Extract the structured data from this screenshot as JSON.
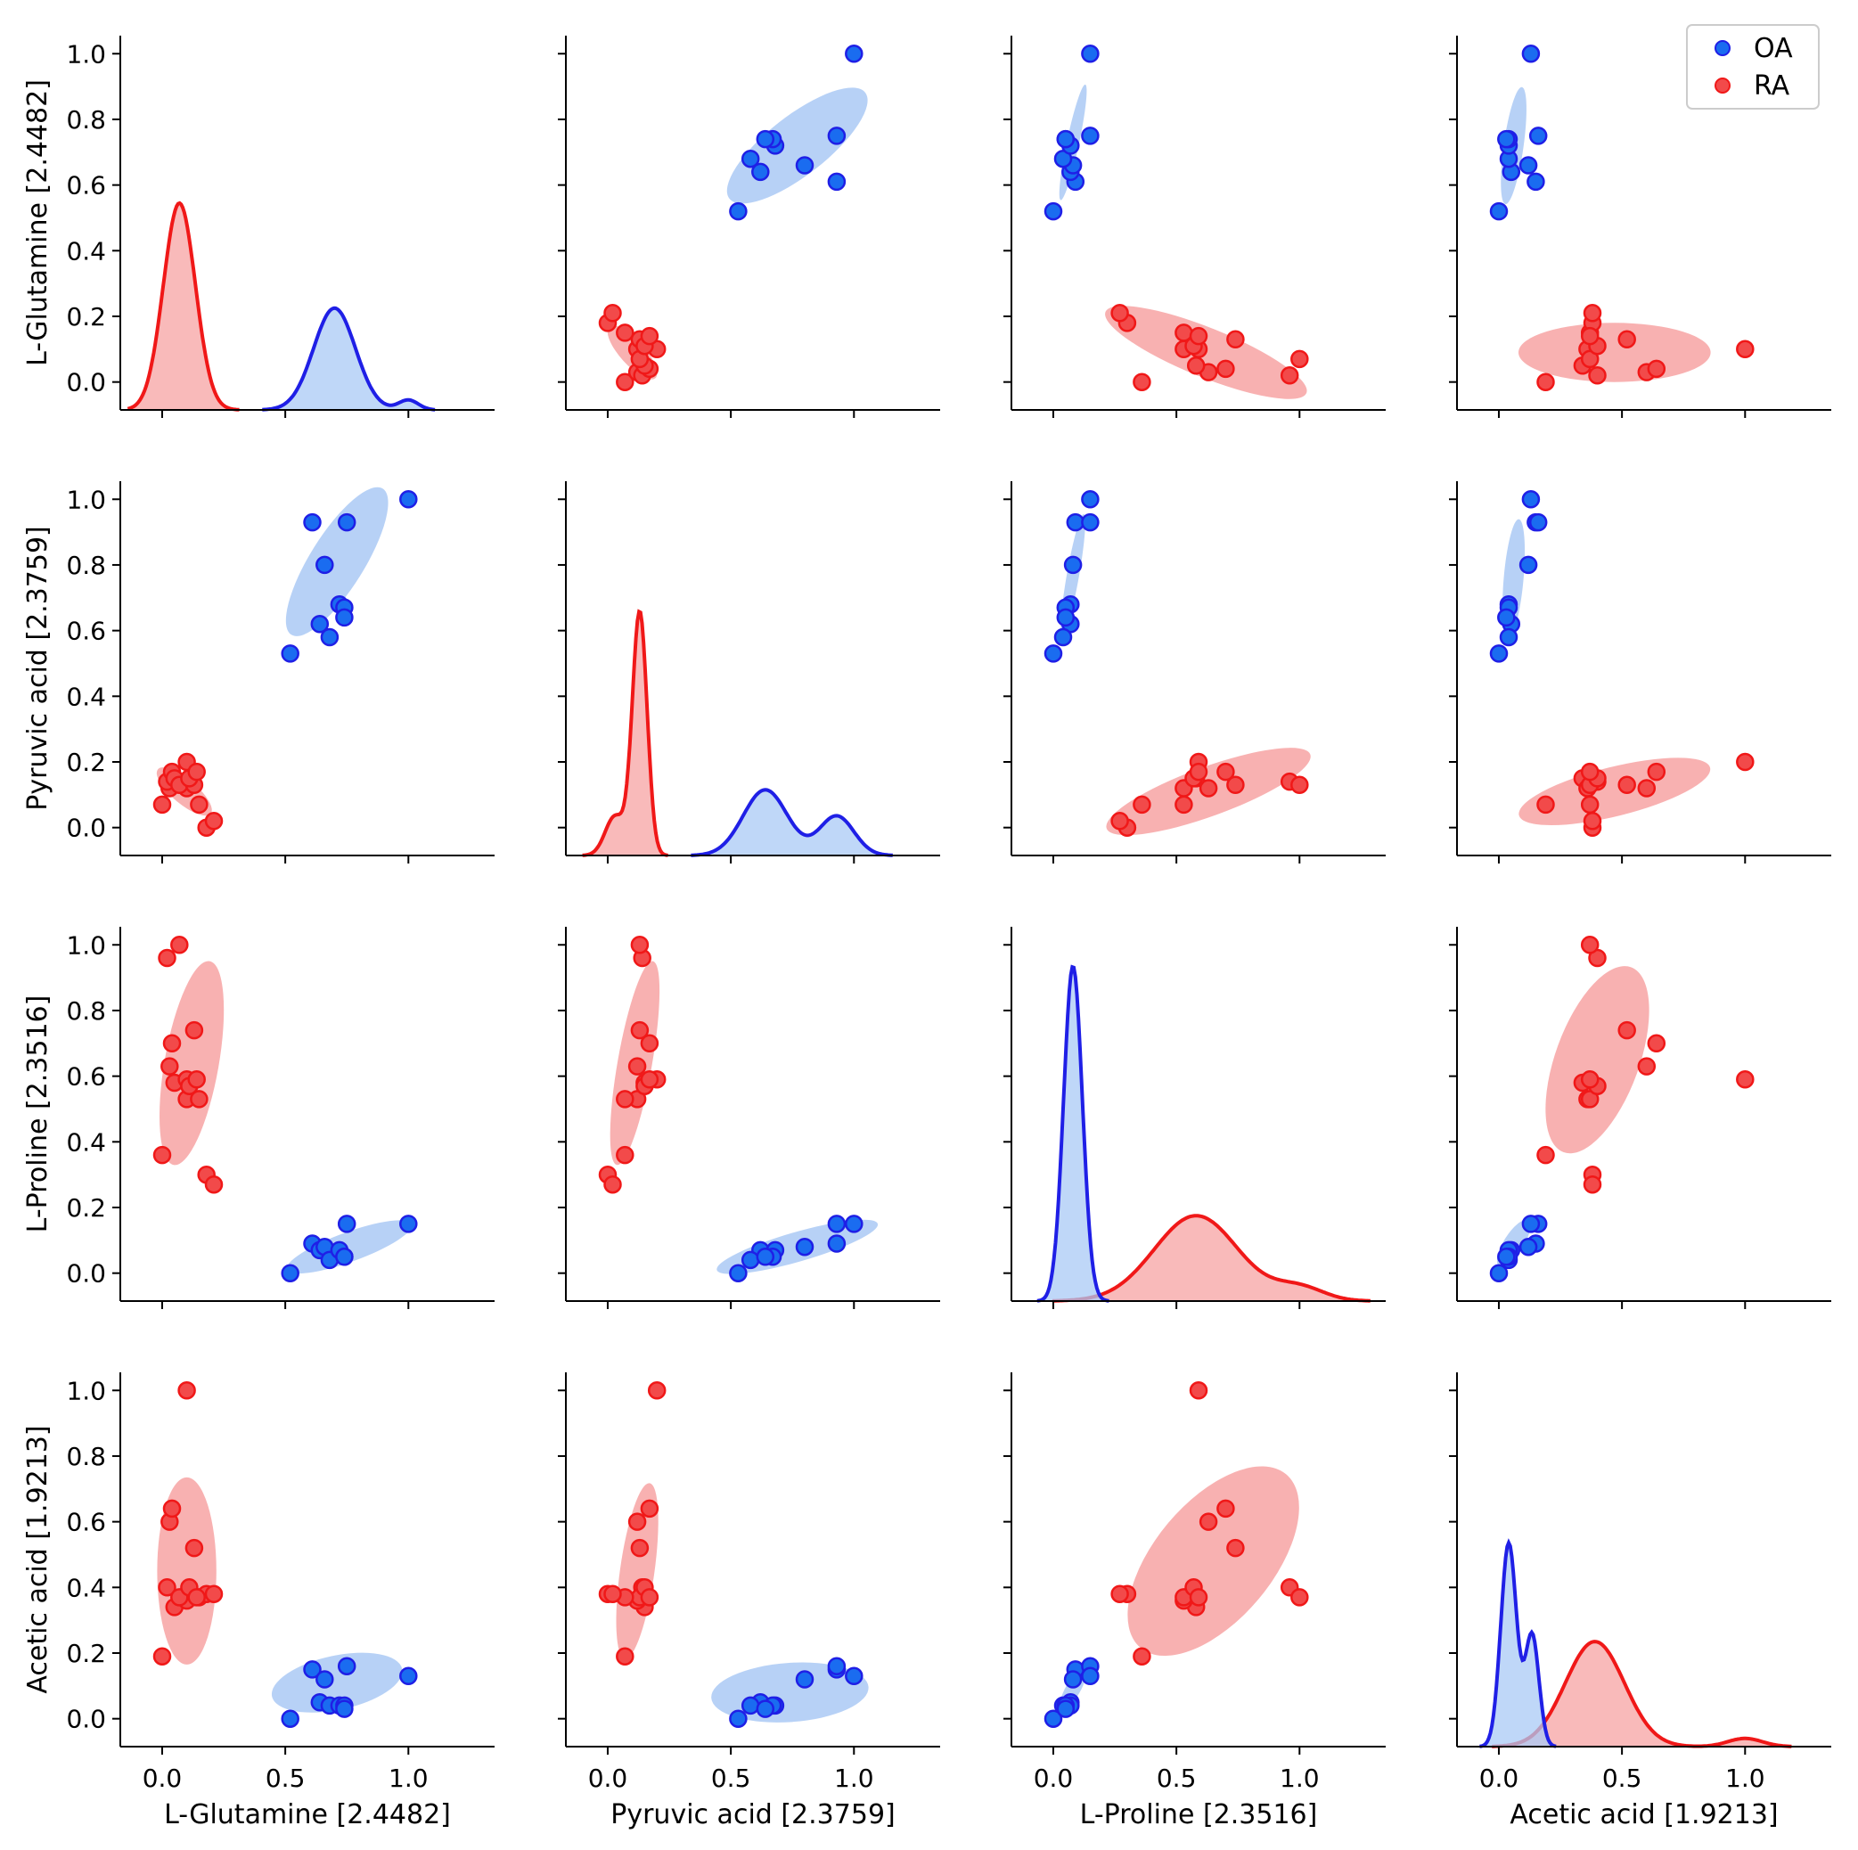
{
  "chart_data": {
    "type": "pairplot",
    "variables": [
      "L-Glutamine [2.4482]",
      "Pyruvic acid [2.3759]",
      "L-Proline [2.3516]",
      "Acetic acid [1.9213]"
    ],
    "xlim": [
      -0.17,
      1.35
    ],
    "ylim": [
      -0.085,
      1.055
    ],
    "xticks": [
      0.0,
      0.5,
      1.0
    ],
    "yticks": [
      0.0,
      0.2,
      0.4,
      0.6,
      0.8,
      1.0
    ],
    "colors": {
      "OA": "#1f1fe6",
      "OA_fill": "#aac9f5",
      "RA": "#f01818",
      "RA_fill": "#f7a3a3",
      "OA_point": "#1a6cf0",
      "RA_point": "#f24a4a"
    },
    "legend": {
      "position": "top-right",
      "entries": [
        "OA",
        "RA"
      ]
    },
    "groups": {
      "OA": {
        "L-Glutamine [2.4482]": [
          0.52,
          0.61,
          0.64,
          0.66,
          0.68,
          0.72,
          0.74,
          0.74,
          0.75,
          1.0
        ],
        "Pyruvic acid [2.3759]": [
          0.53,
          0.93,
          0.62,
          0.8,
          0.58,
          0.68,
          0.67,
          0.64,
          0.93,
          1.0
        ],
        "L-Proline [2.3516]": [
          0.0,
          0.09,
          0.07,
          0.08,
          0.04,
          0.07,
          0.05,
          0.05,
          0.15,
          0.15
        ],
        "Acetic acid [1.9213]": [
          0.0,
          0.15,
          0.05,
          0.12,
          0.04,
          0.04,
          0.04,
          0.03,
          0.16,
          0.13
        ]
      },
      "RA": {
        "L-Glutamine [2.4482]": [
          0.0,
          0.03,
          0.02,
          0.04,
          0.05,
          0.1,
          0.07,
          0.13,
          0.15,
          0.18,
          0.1,
          0.11,
          0.14,
          0.21
        ],
        "Pyruvic acid [2.3759]": [
          0.07,
          0.12,
          0.14,
          0.17,
          0.15,
          0.12,
          0.13,
          0.13,
          0.07,
          0.0,
          0.2,
          0.15,
          0.17,
          0.02
        ],
        "L-Proline [2.3516]": [
          0.36,
          0.63,
          0.96,
          0.7,
          0.58,
          0.53,
          1.0,
          0.74,
          0.53,
          0.3,
          0.59,
          0.57,
          0.59,
          0.27
        ],
        "Acetic acid [1.9213]": [
          0.19,
          0.6,
          0.4,
          0.64,
          0.34,
          0.36,
          0.37,
          0.52,
          0.37,
          0.38,
          1.0,
          0.4,
          0.37,
          0.38
        ]
      }
    },
    "ellipses": [
      {
        "row": 0,
        "col": 1,
        "group": "OA",
        "cx": 0.77,
        "cy": 0.72,
        "rx": 0.35,
        "ry": 0.12,
        "angle": 38
      },
      {
        "row": 0,
        "col": 1,
        "group": "RA",
        "cx": 0.1,
        "cy": 0.09,
        "rx": 0.14,
        "ry": 0.05,
        "angle": -48
      },
      {
        "row": 0,
        "col": 2,
        "group": "OA",
        "cx": 0.08,
        "cy": 0.73,
        "rx": 0.24,
        "ry": 0.025,
        "angle": 78
      },
      {
        "row": 0,
        "col": 2,
        "group": "RA",
        "cx": 0.62,
        "cy": 0.09,
        "rx": 0.44,
        "ry": 0.1,
        "angle": -22
      },
      {
        "row": 0,
        "col": 3,
        "group": "OA",
        "cx": 0.06,
        "cy": 0.72,
        "rx": 0.24,
        "ry": 0.04,
        "angle": 82
      },
      {
        "row": 0,
        "col": 3,
        "group": "RA",
        "cx": 0.47,
        "cy": 0.09,
        "rx": 0.39,
        "ry": 0.12,
        "angle": 0
      },
      {
        "row": 1,
        "col": 0,
        "group": "OA",
        "cx": 0.71,
        "cy": 0.81,
        "rx": 0.35,
        "ry": 0.11,
        "angle": 58
      },
      {
        "row": 1,
        "col": 0,
        "group": "RA",
        "cx": 0.09,
        "cy": 0.11,
        "rx": 0.14,
        "ry": 0.05,
        "angle": -40
      },
      {
        "row": 1,
        "col": 2,
        "group": "OA",
        "cx": 0.08,
        "cy": 0.77,
        "rx": 0.25,
        "ry": 0.025,
        "angle": 80
      },
      {
        "row": 1,
        "col": 2,
        "group": "RA",
        "cx": 0.63,
        "cy": 0.11,
        "rx": 0.44,
        "ry": 0.1,
        "angle": 20
      },
      {
        "row": 1,
        "col": 3,
        "group": "OA",
        "cx": 0.06,
        "cy": 0.76,
        "rx": 0.24,
        "ry": 0.04,
        "angle": 85
      },
      {
        "row": 1,
        "col": 3,
        "group": "RA",
        "cx": 0.47,
        "cy": 0.11,
        "rx": 0.4,
        "ry": 0.1,
        "angle": 14
      },
      {
        "row": 2,
        "col": 0,
        "group": "OA",
        "cx": 0.76,
        "cy": 0.08,
        "rx": 0.27,
        "ry": 0.06,
        "angle": 20
      },
      {
        "row": 2,
        "col": 0,
        "group": "RA",
        "cx": 0.12,
        "cy": 0.64,
        "rx": 0.42,
        "ry": 0.11,
        "angle": 80
      },
      {
        "row": 2,
        "col": 1,
        "group": "OA",
        "cx": 0.77,
        "cy": 0.08,
        "rx": 0.34,
        "ry": 0.06,
        "angle": 16
      },
      {
        "row": 2,
        "col": 1,
        "group": "RA",
        "cx": 0.11,
        "cy": 0.64,
        "rx": 0.42,
        "ry": 0.07,
        "angle": 80
      },
      {
        "row": 2,
        "col": 3,
        "group": "OA",
        "cx": 0.06,
        "cy": 0.09,
        "rx": 0.11,
        "ry": 0.04,
        "angle": 58
      },
      {
        "row": 2,
        "col": 3,
        "group": "RA",
        "cx": 0.4,
        "cy": 0.65,
        "rx": 0.4,
        "ry": 0.17,
        "angle": 70
      },
      {
        "row": 3,
        "col": 0,
        "group": "OA",
        "cx": 0.71,
        "cy": 0.11,
        "rx": 0.27,
        "ry": 0.11,
        "angle": 12
      },
      {
        "row": 3,
        "col": 0,
        "group": "RA",
        "cx": 0.1,
        "cy": 0.45,
        "rx": 0.38,
        "ry": 0.12,
        "angle": 90
      },
      {
        "row": 3,
        "col": 1,
        "group": "OA",
        "cx": 0.74,
        "cy": 0.08,
        "rx": 0.32,
        "ry": 0.12,
        "angle": 4
      },
      {
        "row": 3,
        "col": 1,
        "group": "RA",
        "cx": 0.12,
        "cy": 0.45,
        "rx": 0.36,
        "ry": 0.07,
        "angle": 82
      },
      {
        "row": 3,
        "col": 2,
        "group": "OA",
        "cx": 0.08,
        "cy": 0.09,
        "rx": 0.09,
        "ry": 0.03,
        "angle": 60
      },
      {
        "row": 3,
        "col": 2,
        "group": "RA",
        "cx": 0.65,
        "cy": 0.48,
        "rx": 0.46,
        "ry": 0.24,
        "angle": 50
      }
    ],
    "kde": [
      {
        "var": 0,
        "group": "RA",
        "peaks": [
          [
            0.07,
            0.63,
            0.065
          ]
        ]
      },
      {
        "var": 0,
        "group": "OA",
        "peaks": [
          [
            0.7,
            0.31,
            0.085
          ],
          [
            1.0,
            0.03,
            0.04
          ]
        ]
      },
      {
        "var": 1,
        "group": "RA",
        "peaks": [
          [
            0.13,
            0.74,
            0.03
          ],
          [
            0.03,
            0.12,
            0.04
          ]
        ]
      },
      {
        "var": 1,
        "group": "OA",
        "peaks": [
          [
            0.64,
            0.2,
            0.09
          ],
          [
            0.93,
            0.12,
            0.07
          ]
        ]
      },
      {
        "var": 2,
        "group": "OA",
        "peaks": [
          [
            0.08,
            1.02,
            0.038
          ]
        ]
      },
      {
        "var": 2,
        "group": "RA",
        "peaks": [
          [
            0.58,
            0.26,
            0.17
          ],
          [
            1.0,
            0.04,
            0.1
          ]
        ]
      },
      {
        "var": 3,
        "group": "OA",
        "peaks": [
          [
            0.04,
            0.62,
            0.032
          ],
          [
            0.135,
            0.34,
            0.028
          ]
        ]
      },
      {
        "var": 3,
        "group": "RA",
        "peaks": [
          [
            0.39,
            0.32,
            0.12
          ],
          [
            1.0,
            0.025,
            0.07
          ]
        ]
      }
    ]
  }
}
